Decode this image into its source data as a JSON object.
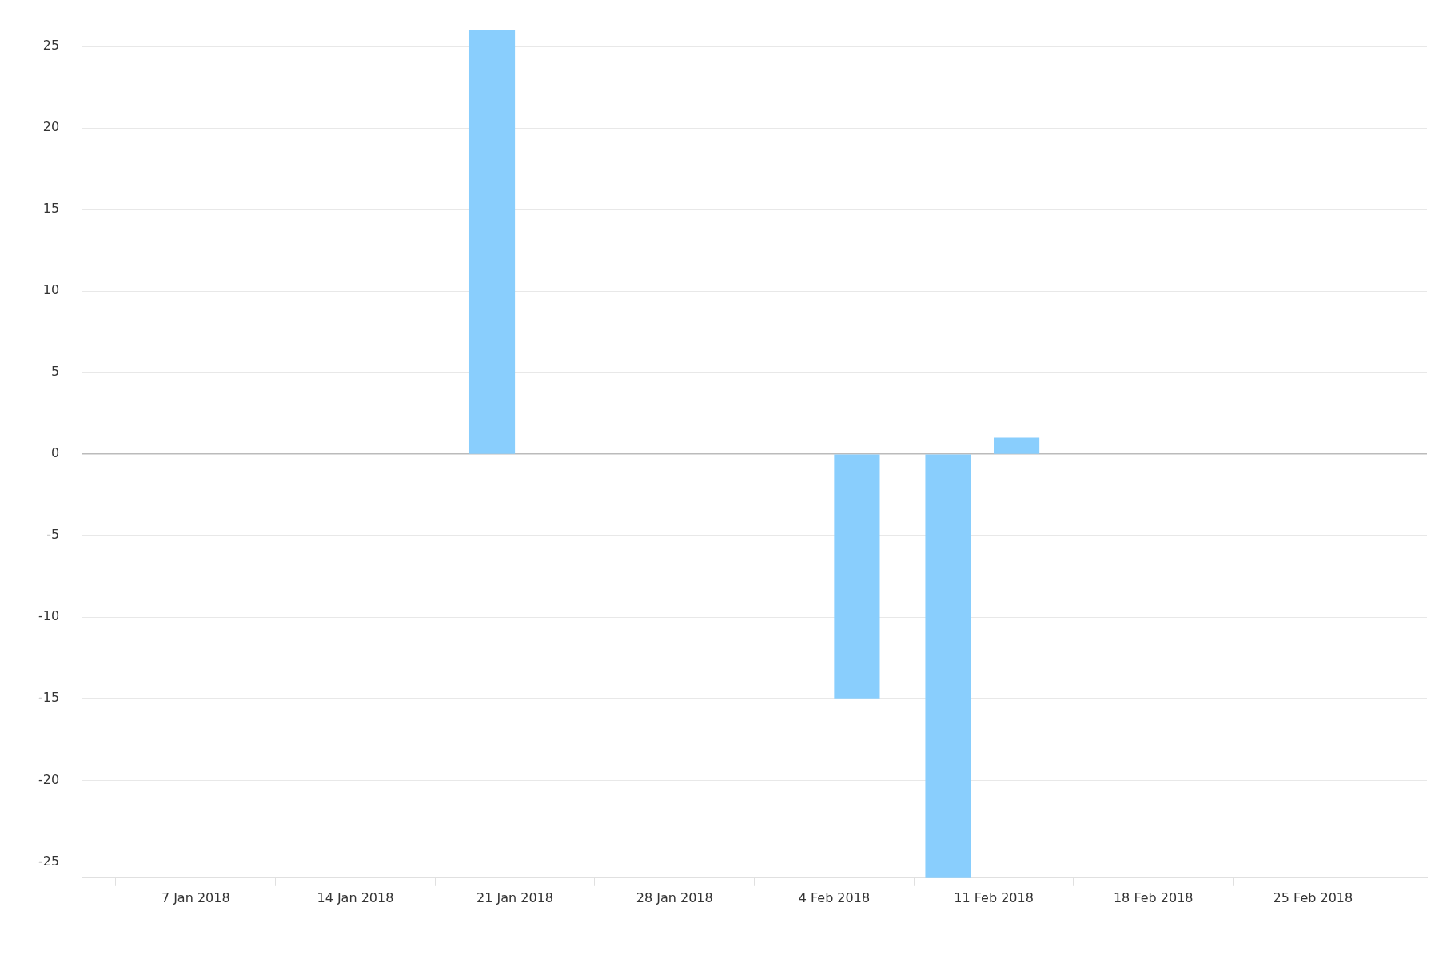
{
  "chart_data": {
    "type": "bar",
    "x": [
      "2018-01-20",
      "2018-02-05",
      "2018-02-09",
      "2018-02-12"
    ],
    "values": [
      26,
      -15,
      -26,
      1
    ],
    "color": "#89cefd",
    "xlim": [
      "2018-01-02",
      "2018-03-02"
    ],
    "xticks": [
      {
        "value": "2018-01-07",
        "label": "7 Jan 2018"
      },
      {
        "value": "2018-01-14",
        "label": "14 Jan 2018"
      },
      {
        "value": "2018-01-21",
        "label": "21 Jan 2018"
      },
      {
        "value": "2018-01-28",
        "label": "28 Jan 2018"
      },
      {
        "value": "2018-02-04",
        "label": "4 Feb 2018"
      },
      {
        "value": "2018-02-11",
        "label": "11 Feb 2018"
      },
      {
        "value": "2018-02-18",
        "label": "18 Feb 2018"
      },
      {
        "value": "2018-02-25",
        "label": "25 Feb 2018"
      }
    ],
    "ylim": [
      -26,
      26
    ],
    "yticks": [
      -25,
      -20,
      -15,
      -10,
      -5,
      0,
      5,
      10,
      15,
      20,
      25
    ],
    "grid": "y",
    "legend": false
  }
}
